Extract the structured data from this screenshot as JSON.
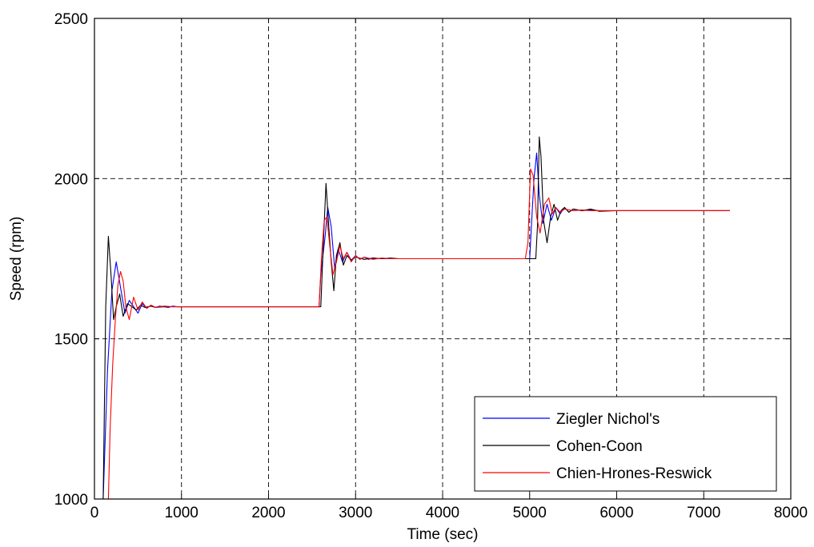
{
  "chart_data": {
    "type": "line",
    "title": "",
    "xlabel": "Time (sec)",
    "ylabel": "Speed (rpm)",
    "xlim": [
      0,
      8000
    ],
    "ylim": [
      1000,
      2500
    ],
    "xticks": [
      0,
      1000,
      2000,
      3000,
      4000,
      5000,
      6000,
      7000,
      8000
    ],
    "yticks": [
      1000,
      1500,
      2000,
      2500
    ],
    "grid": true,
    "legend": "bottom-right",
    "series": [
      {
        "name": "Ziegler Nichol's",
        "color": "#0000ff",
        "points": [
          [
            100,
            1000
          ],
          [
            150,
            1400
          ],
          [
            200,
            1650
          ],
          [
            250,
            1740
          ],
          [
            300,
            1660
          ],
          [
            350,
            1580
          ],
          [
            400,
            1620
          ],
          [
            450,
            1600
          ],
          [
            500,
            1580
          ],
          [
            550,
            1610
          ],
          [
            600,
            1595
          ],
          [
            650,
            1605
          ],
          [
            700,
            1598
          ],
          [
            750,
            1602
          ],
          [
            800,
            1600
          ],
          [
            850,
            1598
          ],
          [
            900,
            1602
          ],
          [
            950,
            1600
          ],
          [
            1000,
            1600
          ],
          [
            2580,
            1600
          ],
          [
            2600,
            1700
          ],
          [
            2650,
            1820
          ],
          [
            2680,
            1910
          ],
          [
            2720,
            1850
          ],
          [
            2760,
            1720
          ],
          [
            2800,
            1780
          ],
          [
            2850,
            1740
          ],
          [
            2900,
            1770
          ],
          [
            2950,
            1745
          ],
          [
            3000,
            1760
          ],
          [
            3050,
            1748
          ],
          [
            3100,
            1755
          ],
          [
            3150,
            1748
          ],
          [
            3200,
            1752
          ],
          [
            3300,
            1750
          ],
          [
            3400,
            1750
          ],
          [
            5000,
            1750
          ],
          [
            5020,
            1850
          ],
          [
            5050,
            2000
          ],
          [
            5080,
            2080
          ],
          [
            5110,
            1950
          ],
          [
            5150,
            1860
          ],
          [
            5200,
            1920
          ],
          [
            5250,
            1870
          ],
          [
            5300,
            1910
          ],
          [
            5350,
            1890
          ],
          [
            5400,
            1910
          ],
          [
            5450,
            1895
          ],
          [
            5500,
            1905
          ],
          [
            5600,
            1900
          ],
          [
            5700,
            1902
          ],
          [
            5800,
            1900
          ],
          [
            6000,
            1900
          ],
          [
            7300,
            1900
          ]
        ]
      },
      {
        "name": "Cohen-Coon",
        "color": "#000000",
        "points": [
          [
            100,
            1000
          ],
          [
            130,
            1600
          ],
          [
            160,
            1820
          ],
          [
            190,
            1700
          ],
          [
            220,
            1560
          ],
          [
            250,
            1600
          ],
          [
            290,
            1640
          ],
          [
            330,
            1570
          ],
          [
            380,
            1610
          ],
          [
            430,
            1600
          ],
          [
            480,
            1590
          ],
          [
            530,
            1605
          ],
          [
            580,
            1598
          ],
          [
            650,
            1602
          ],
          [
            700,
            1598
          ],
          [
            800,
            1600
          ],
          [
            1000,
            1600
          ],
          [
            2600,
            1600
          ],
          [
            2630,
            1800
          ],
          [
            2660,
            1985
          ],
          [
            2690,
            1860
          ],
          [
            2720,
            1740
          ],
          [
            2750,
            1650
          ],
          [
            2780,
            1760
          ],
          [
            2820,
            1800
          ],
          [
            2860,
            1730
          ],
          [
            2900,
            1760
          ],
          [
            2950,
            1745
          ],
          [
            3000,
            1755
          ],
          [
            3100,
            1748
          ],
          [
            3200,
            1752
          ],
          [
            3300,
            1750
          ],
          [
            3400,
            1752
          ],
          [
            3500,
            1750
          ],
          [
            5000,
            1750
          ],
          [
            5070,
            1750
          ],
          [
            5090,
            1850
          ],
          [
            5110,
            2130
          ],
          [
            5130,
            2070
          ],
          [
            5160,
            1870
          ],
          [
            5200,
            1800
          ],
          [
            5240,
            1880
          ],
          [
            5280,
            1920
          ],
          [
            5320,
            1870
          ],
          [
            5360,
            1900
          ],
          [
            5400,
            1910
          ],
          [
            5450,
            1895
          ],
          [
            5500,
            1905
          ],
          [
            5600,
            1900
          ],
          [
            5700,
            1905
          ],
          [
            5800,
            1898
          ],
          [
            6000,
            1900
          ],
          [
            7300,
            1900
          ]
        ]
      },
      {
        "name": "Chien-Hrones-Reswick",
        "color": "#ff0000",
        "points": [
          [
            160,
            1000
          ],
          [
            180,
            1220
          ],
          [
            210,
            1420
          ],
          [
            240,
            1560
          ],
          [
            270,
            1670
          ],
          [
            300,
            1710
          ],
          [
            330,
            1680
          ],
          [
            360,
            1600
          ],
          [
            400,
            1560
          ],
          [
            450,
            1630
          ],
          [
            500,
            1590
          ],
          [
            550,
            1615
          ],
          [
            600,
            1595
          ],
          [
            650,
            1605
          ],
          [
            700,
            1598
          ],
          [
            800,
            1602
          ],
          [
            900,
            1600
          ],
          [
            1000,
            1600
          ],
          [
            2580,
            1600
          ],
          [
            2610,
            1760
          ],
          [
            2640,
            1870
          ],
          [
            2670,
            1880
          ],
          [
            2700,
            1800
          ],
          [
            2740,
            1700
          ],
          [
            2780,
            1740
          ],
          [
            2820,
            1790
          ],
          [
            2860,
            1750
          ],
          [
            2900,
            1770
          ],
          [
            2950,
            1740
          ],
          [
            3000,
            1760
          ],
          [
            3050,
            1748
          ],
          [
            3100,
            1755
          ],
          [
            3200,
            1748
          ],
          [
            3300,
            1752
          ],
          [
            3400,
            1750
          ],
          [
            4950,
            1750
          ],
          [
            4980,
            1800
          ],
          [
            5010,
            2030
          ],
          [
            5040,
            2010
          ],
          [
            5080,
            1880
          ],
          [
            5120,
            1830
          ],
          [
            5170,
            1920
          ],
          [
            5220,
            1940
          ],
          [
            5260,
            1890
          ],
          [
            5300,
            1910
          ],
          [
            5350,
            1895
          ],
          [
            5400,
            1905
          ],
          [
            5500,
            1900
          ],
          [
            5600,
            1902
          ],
          [
            5700,
            1900
          ],
          [
            6000,
            1900
          ],
          [
            7300,
            1900
          ]
        ]
      }
    ]
  }
}
